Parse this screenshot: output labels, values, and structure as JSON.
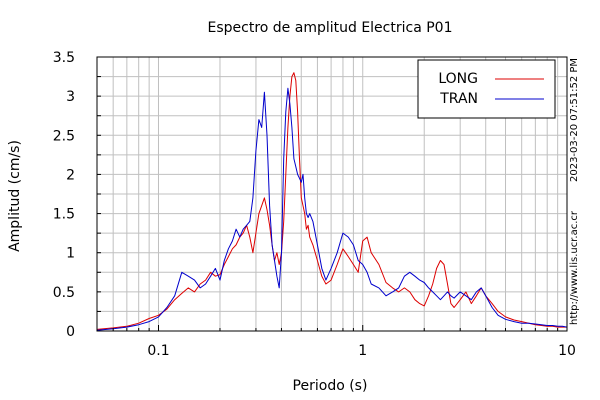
{
  "chart_data": {
    "type": "line",
    "title": "Espectro de amplitud Electrica P01",
    "xlabel": "Periodo (s)",
    "ylabel": "Amplitud (cm/s)",
    "x_scale": "log",
    "xlim": [
      0.05,
      10
    ],
    "ylim": [
      0,
      3.5
    ],
    "x_ticks": [
      {
        "value": 0.1,
        "label": "0.1"
      },
      {
        "value": 1,
        "label": "1"
      },
      {
        "value": 10,
        "label": "10"
      }
    ],
    "y_ticks": [
      {
        "value": 0,
        "label": "0"
      },
      {
        "value": 0.5,
        "label": "0.5"
      },
      {
        "value": 1,
        "label": "1"
      },
      {
        "value": 1.5,
        "label": "1.5"
      },
      {
        "value": 2,
        "label": "2"
      },
      {
        "value": 2.5,
        "label": "2.5"
      },
      {
        "value": 3,
        "label": "3"
      },
      {
        "value": 3.5,
        "label": "3.5"
      }
    ],
    "grid": true,
    "legend_position": "top-right",
    "series": [
      {
        "name": "LONG",
        "color": "#dd0000",
        "x": [
          0.05,
          0.06,
          0.07,
          0.08,
          0.09,
          0.1,
          0.11,
          0.12,
          0.13,
          0.14,
          0.15,
          0.16,
          0.17,
          0.18,
          0.19,
          0.2,
          0.21,
          0.22,
          0.23,
          0.24,
          0.25,
          0.26,
          0.27,
          0.28,
          0.29,
          0.3,
          0.31,
          0.32,
          0.33,
          0.34,
          0.35,
          0.36,
          0.37,
          0.38,
          0.39,
          0.4,
          0.41,
          0.42,
          0.43,
          0.44,
          0.45,
          0.46,
          0.47,
          0.48,
          0.49,
          0.5,
          0.51,
          0.52,
          0.53,
          0.54,
          0.55,
          0.57,
          0.6,
          0.63,
          0.66,
          0.7,
          0.75,
          0.8,
          0.85,
          0.9,
          0.95,
          1.0,
          1.05,
          1.1,
          1.2,
          1.3,
          1.4,
          1.5,
          1.6,
          1.7,
          1.8,
          1.9,
          2.0,
          2.1,
          2.2,
          2.3,
          2.4,
          2.5,
          2.6,
          2.7,
          2.8,
          3.0,
          3.2,
          3.4,
          3.6,
          3.8,
          4.0,
          4.3,
          4.6,
          5.0,
          5.5,
          6.0,
          6.5,
          7.0,
          7.5,
          8.0,
          8.5,
          9.0,
          9.5,
          10.0
        ],
        "y": [
          0.02,
          0.04,
          0.06,
          0.1,
          0.16,
          0.2,
          0.28,
          0.4,
          0.48,
          0.55,
          0.5,
          0.6,
          0.65,
          0.75,
          0.7,
          0.72,
          0.85,
          0.95,
          1.05,
          1.1,
          1.2,
          1.25,
          1.35,
          1.2,
          1.0,
          1.25,
          1.5,
          1.6,
          1.7,
          1.55,
          1.35,
          1.1,
          0.9,
          1.0,
          0.85,
          1.0,
          1.4,
          2.0,
          2.6,
          3.0,
          3.25,
          3.3,
          3.2,
          2.8,
          2.2,
          1.7,
          1.6,
          1.5,
          1.3,
          1.35,
          1.2,
          1.1,
          0.9,
          0.7,
          0.6,
          0.65,
          0.85,
          1.05,
          0.95,
          0.85,
          0.75,
          1.15,
          1.2,
          1.0,
          0.85,
          0.62,
          0.55,
          0.5,
          0.55,
          0.5,
          0.4,
          0.35,
          0.32,
          0.45,
          0.6,
          0.8,
          0.9,
          0.85,
          0.6,
          0.35,
          0.3,
          0.4,
          0.5,
          0.35,
          0.45,
          0.55,
          0.45,
          0.35,
          0.25,
          0.18,
          0.14,
          0.12,
          0.1,
          0.08,
          0.07,
          0.06,
          0.06,
          0.05,
          0.05,
          0.05
        ]
      },
      {
        "name": "TRAN",
        "color": "#0000cc",
        "x": [
          0.05,
          0.06,
          0.07,
          0.08,
          0.09,
          0.1,
          0.11,
          0.12,
          0.13,
          0.14,
          0.15,
          0.16,
          0.17,
          0.18,
          0.19,
          0.2,
          0.21,
          0.22,
          0.23,
          0.24,
          0.25,
          0.26,
          0.27,
          0.28,
          0.29,
          0.3,
          0.31,
          0.32,
          0.33,
          0.34,
          0.35,
          0.36,
          0.37,
          0.38,
          0.39,
          0.4,
          0.41,
          0.42,
          0.43,
          0.44,
          0.45,
          0.46,
          0.47,
          0.48,
          0.49,
          0.5,
          0.51,
          0.52,
          0.53,
          0.54,
          0.55,
          0.57,
          0.6,
          0.63,
          0.66,
          0.7,
          0.75,
          0.8,
          0.85,
          0.9,
          0.95,
          1.0,
          1.05,
          1.1,
          1.2,
          1.3,
          1.4,
          1.5,
          1.6,
          1.7,
          1.8,
          1.9,
          2.0,
          2.1,
          2.2,
          2.3,
          2.4,
          2.5,
          2.6,
          2.7,
          2.8,
          3.0,
          3.2,
          3.4,
          3.6,
          3.8,
          4.0,
          4.3,
          4.6,
          5.0,
          5.5,
          6.0,
          6.5,
          7.0,
          7.5,
          8.0,
          8.5,
          9.0,
          9.5,
          10.0
        ],
        "y": [
          0.01,
          0.03,
          0.05,
          0.08,
          0.12,
          0.18,
          0.3,
          0.45,
          0.75,
          0.7,
          0.65,
          0.55,
          0.6,
          0.7,
          0.8,
          0.65,
          0.9,
          1.05,
          1.15,
          1.3,
          1.2,
          1.3,
          1.35,
          1.4,
          1.7,
          2.3,
          2.7,
          2.6,
          3.05,
          2.5,
          1.6,
          1.1,
          0.9,
          0.7,
          0.55,
          1.0,
          2.2,
          2.8,
          3.1,
          2.9,
          2.6,
          2.2,
          2.1,
          2.0,
          1.95,
          1.9,
          2.0,
          1.7,
          1.5,
          1.45,
          1.5,
          1.4,
          1.1,
          0.8,
          0.65,
          0.8,
          1.0,
          1.25,
          1.2,
          1.1,
          0.9,
          0.85,
          0.75,
          0.6,
          0.55,
          0.45,
          0.5,
          0.55,
          0.7,
          0.75,
          0.7,
          0.65,
          0.62,
          0.55,
          0.5,
          0.45,
          0.4,
          0.45,
          0.5,
          0.45,
          0.42,
          0.5,
          0.45,
          0.4,
          0.5,
          0.55,
          0.45,
          0.3,
          0.2,
          0.15,
          0.12,
          0.1,
          0.1,
          0.09,
          0.08,
          0.07,
          0.07,
          0.06,
          0.06,
          0.05
        ]
      }
    ]
  },
  "side_label": "2023-03-20 07:51:52 PM",
  "side_url": "http://www.lis.ucr.ac.cr"
}
